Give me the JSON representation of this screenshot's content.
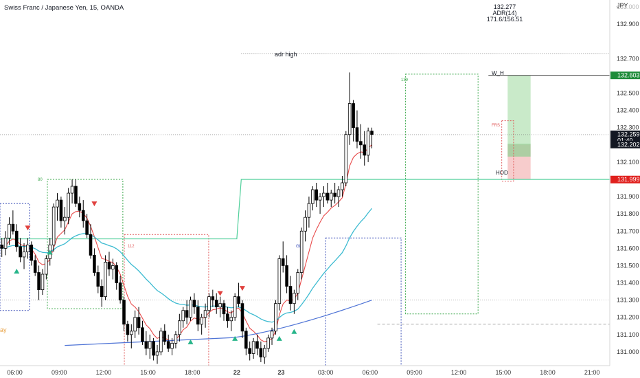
{
  "header": {
    "symbol_title": "Swiss Franc / Japanese Yen, 15, OANDA",
    "currency_label": "JPY"
  },
  "hud": {
    "price": "132.277",
    "adr_label": "ADR(14)",
    "adr_values": "171.6/156.51"
  },
  "labels": {
    "adr_high": "adr high",
    "w_h": "W_H",
    "hod": "HOD",
    "partial_left": "ay",
    "box_tags": [
      "80",
      "139",
      "GL",
      "112",
      "FRS"
    ]
  },
  "price_badges": [
    {
      "value": "132.603",
      "color": "#1e8c3a",
      "sub": ""
    },
    {
      "value": "132.259",
      "color": "#131722",
      "sub": "01:40"
    },
    {
      "value": "132.202",
      "color": "#131722",
      "sub": ""
    },
    {
      "value": "131.999",
      "color": "#e0201d",
      "sub": ""
    }
  ],
  "colors": {
    "ema_fast": "#e84a4a",
    "ema_mid": "#3dbbd1",
    "ema_slow": "#4f74d6",
    "adr_line": "#4fcf9a",
    "box_green": "#3aa84a",
    "box_red": "#e05a5a",
    "box_blue": "#3b4fb8",
    "up_marker": "#27b58a",
    "down_marker": "#e0403d",
    "tp_zone": "#bfe6bf",
    "sl_zone": "#f6c3c3"
  },
  "chart_data": {
    "type": "candlestick",
    "title": "Swiss Franc / Japanese Yen, 15, OANDA",
    "y_axis_label": "JPY",
    "ylim": [
      130.92,
      133.04
    ],
    "y_ticks": [
      "133.000",
      "132.900",
      "132.700",
      "132.500",
      "132.400",
      "132.300",
      "132.100",
      "131.900",
      "131.800",
      "131.700",
      "131.600",
      "131.500",
      "131.400",
      "131.300",
      "131.200",
      "131.100",
      "131.000"
    ],
    "x_tick_labels": [
      "06:00",
      "09:00",
      "12:00",
      "15:00",
      "18:00",
      "22",
      "23",
      "03:00",
      "06:00",
      "09:00",
      "12:00",
      "15:00",
      "18:00",
      "21:00"
    ],
    "x_ticks_hours": [
      6,
      9,
      12,
      15,
      18,
      21,
      24,
      27,
      30,
      33,
      36,
      39,
      42,
      45
    ],
    "x_range_hours": [
      5.0,
      46.2
    ],
    "bars_start_hour": 5.0,
    "bar_minutes": 15,
    "levels": {
      "adr_high": 132.73,
      "w_h": 132.603,
      "current": 132.259,
      "hod": 132.0,
      "entry": 132.202,
      "sl": 131.999,
      "tp": 132.603
    },
    "candles": [
      [
        131.62,
        131.66,
        131.55,
        131.6
      ],
      [
        131.6,
        131.7,
        131.56,
        131.66
      ],
      [
        131.66,
        131.78,
        131.62,
        131.74
      ],
      [
        131.74,
        131.82,
        131.68,
        131.7
      ],
      [
        131.7,
        131.74,
        131.58,
        131.61
      ],
      [
        131.61,
        131.66,
        131.52,
        131.55
      ],
      [
        131.55,
        131.63,
        131.48,
        131.58
      ],
      [
        131.58,
        131.66,
        131.54,
        131.62
      ],
      [
        131.62,
        131.64,
        131.5,
        131.53
      ],
      [
        131.53,
        131.56,
        131.44,
        131.46
      ],
      [
        131.46,
        131.5,
        131.3,
        131.36
      ],
      [
        131.36,
        131.48,
        131.33,
        131.45
      ],
      [
        131.45,
        131.56,
        131.42,
        131.54
      ],
      [
        131.54,
        131.66,
        131.5,
        131.62
      ],
      [
        131.62,
        131.86,
        131.58,
        131.84
      ],
      [
        131.84,
        131.92,
        131.76,
        131.88
      ],
      [
        131.88,
        131.9,
        131.72,
        131.76
      ],
      [
        131.76,
        131.84,
        131.68,
        131.78
      ],
      [
        131.78,
        131.95,
        131.74,
        131.92
      ],
      [
        131.92,
        132.0,
        131.86,
        131.96
      ],
      [
        131.96,
        132.0,
        131.84,
        131.86
      ],
      [
        131.86,
        131.9,
        131.78,
        131.82
      ],
      [
        131.82,
        131.88,
        131.72,
        131.76
      ],
      [
        131.76,
        131.8,
        131.66,
        131.68
      ],
      [
        131.68,
        131.74,
        131.54,
        131.56
      ],
      [
        131.56,
        131.6,
        131.44,
        131.46
      ],
      [
        131.46,
        131.5,
        131.34,
        131.38
      ],
      [
        131.38,
        131.42,
        131.26,
        131.32
      ],
      [
        131.32,
        131.56,
        131.3,
        131.52
      ],
      [
        131.52,
        131.58,
        131.44,
        131.48
      ],
      [
        131.48,
        131.54,
        131.42,
        131.5
      ],
      [
        131.5,
        131.52,
        131.36,
        131.4
      ],
      [
        131.4,
        131.44,
        131.28,
        131.3
      ],
      [
        131.3,
        131.32,
        131.12,
        131.16
      ],
      [
        131.16,
        131.18,
        131.06,
        131.1
      ],
      [
        131.1,
        131.16,
        131.02,
        131.12
      ],
      [
        131.12,
        131.24,
        131.08,
        131.2
      ],
      [
        131.2,
        131.26,
        131.1,
        131.14
      ],
      [
        131.14,
        131.18,
        131.04,
        131.06
      ],
      [
        131.06,
        131.12,
        130.98,
        131.02
      ],
      [
        131.02,
        131.1,
        130.96,
        131.06
      ],
      [
        131.06,
        131.08,
        130.95,
        130.98
      ],
      [
        130.98,
        131.04,
        130.93,
        131.0
      ],
      [
        131.0,
        131.14,
        130.98,
        131.12
      ],
      [
        131.12,
        131.16,
        131.04,
        131.06
      ],
      [
        131.06,
        131.1,
        131.0,
        131.02
      ],
      [
        131.02,
        131.08,
        130.98,
        131.05
      ],
      [
        131.05,
        131.12,
        131.02,
        131.1
      ],
      [
        131.1,
        131.22,
        131.06,
        131.18
      ],
      [
        131.18,
        131.26,
        131.14,
        131.24
      ],
      [
        131.24,
        131.3,
        131.16,
        131.2
      ],
      [
        131.2,
        131.32,
        131.18,
        131.3
      ],
      [
        131.3,
        131.34,
        131.22,
        131.26
      ],
      [
        131.26,
        131.3,
        131.12,
        131.16
      ],
      [
        131.16,
        131.22,
        131.1,
        131.2
      ],
      [
        131.2,
        131.28,
        131.14,
        131.24
      ],
      [
        131.24,
        131.34,
        131.2,
        131.32
      ],
      [
        131.32,
        131.36,
        131.26,
        131.3
      ],
      [
        131.3,
        131.34,
        131.22,
        131.26
      ],
      [
        131.26,
        131.32,
        131.2,
        131.28
      ],
      [
        131.28,
        131.3,
        131.18,
        131.22
      ],
      [
        131.22,
        131.26,
        131.14,
        131.18
      ],
      [
        131.18,
        131.24,
        131.12,
        131.2
      ],
      [
        131.2,
        131.34,
        131.18,
        131.32
      ],
      [
        131.32,
        131.4,
        131.26,
        131.28
      ],
      [
        131.28,
        131.3,
        131.08,
        131.12
      ],
      [
        131.12,
        131.14,
        130.98,
        131.02
      ],
      [
        131.02,
        131.06,
        130.95,
        130.99
      ],
      [
        130.99,
        131.08,
        130.96,
        131.06
      ],
      [
        131.06,
        131.1,
        130.98,
        131.02
      ],
      [
        131.02,
        131.06,
        130.94,
        130.97
      ],
      [
        130.97,
        131.04,
        130.93,
        131.02
      ],
      [
        131.02,
        131.1,
        131.0,
        131.08
      ],
      [
        131.08,
        131.14,
        131.04,
        131.12
      ],
      [
        131.12,
        131.3,
        131.1,
        131.28
      ],
      [
        131.28,
        131.56,
        131.24,
        131.54
      ],
      [
        131.54,
        131.64,
        131.46,
        131.5
      ],
      [
        131.5,
        131.56,
        131.34,
        131.38
      ],
      [
        131.38,
        131.44,
        131.24,
        131.28
      ],
      [
        131.28,
        131.36,
        131.22,
        131.34
      ],
      [
        131.34,
        131.48,
        131.3,
        131.46
      ],
      [
        131.46,
        131.72,
        131.42,
        131.7
      ],
      [
        131.7,
        131.82,
        131.64,
        131.78
      ],
      [
        131.78,
        131.9,
        131.72,
        131.86
      ],
      [
        131.86,
        131.96,
        131.82,
        131.94
      ],
      [
        131.94,
        131.98,
        131.84,
        131.88
      ],
      [
        131.88,
        131.92,
        131.8,
        131.9
      ],
      [
        131.9,
        131.96,
        131.84,
        131.92
      ],
      [
        131.92,
        131.98,
        131.86,
        131.88
      ],
      [
        131.88,
        131.94,
        131.84,
        131.92
      ],
      [
        131.92,
        131.98,
        131.86,
        131.9
      ],
      [
        131.9,
        131.96,
        131.84,
        131.94
      ],
      [
        131.94,
        132.02,
        131.9,
        131.98
      ],
      [
        131.98,
        132.28,
        131.96,
        132.26
      ],
      [
        132.26,
        132.62,
        132.2,
        132.44
      ],
      [
        132.44,
        132.46,
        132.22,
        132.3
      ],
      [
        132.3,
        132.4,
        132.18,
        132.22
      ],
      [
        132.22,
        132.32,
        132.12,
        132.2
      ],
      [
        132.2,
        132.28,
        132.08,
        132.14
      ],
      [
        132.14,
        132.3,
        132.1,
        132.28
      ],
      [
        132.28,
        132.3,
        132.18,
        132.26
      ]
    ]
  }
}
